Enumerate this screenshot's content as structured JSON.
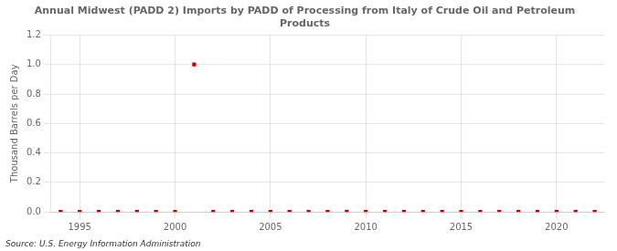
{
  "chart_data": {
    "type": "scatter",
    "title": "Annual Midwest (PADD 2) Imports by PADD of Processing from Italy of Crude Oil and Petroleum\nProducts",
    "y_label": "Thousand Barrels per Day",
    "annotation": "Source: U.S. Energy Information Administration",
    "x": [
      1994,
      1995,
      1996,
      1997,
      1998,
      1999,
      2000,
      2001,
      2002,
      2003,
      2004,
      2005,
      2006,
      2007,
      2008,
      2009,
      2010,
      2011,
      2012,
      2013,
      2014,
      2015,
      2016,
      2017,
      2018,
      2019,
      2020,
      2021,
      2022
    ],
    "values": [
      0.0,
      0.0,
      0.0,
      0.0,
      0.0,
      0.0,
      0.0,
      1.0,
      0.0,
      0.0,
      0.0,
      0.0,
      0.0,
      0.0,
      0.0,
      0.0,
      0.0,
      0.0,
      0.0,
      0.0,
      0.0,
      0.0,
      0.0,
      0.0,
      0.0,
      0.0,
      0.0,
      0.0,
      0.0
    ],
    "color": "#cc0000",
    "marker": "square",
    "xlim": [
      1993.5,
      2022.5
    ],
    "xticks": [
      1995,
      2000,
      2005,
      2010,
      2015,
      2020
    ],
    "ylim": [
      0.0,
      1.2
    ],
    "yticks": [
      {
        "value": 0,
        "label": "0.0"
      },
      0.2,
      0.4,
      0.6,
      0.8,
      {
        "value": 1,
        "label": "1.0"
      },
      1.2
    ],
    "grid": true
  }
}
